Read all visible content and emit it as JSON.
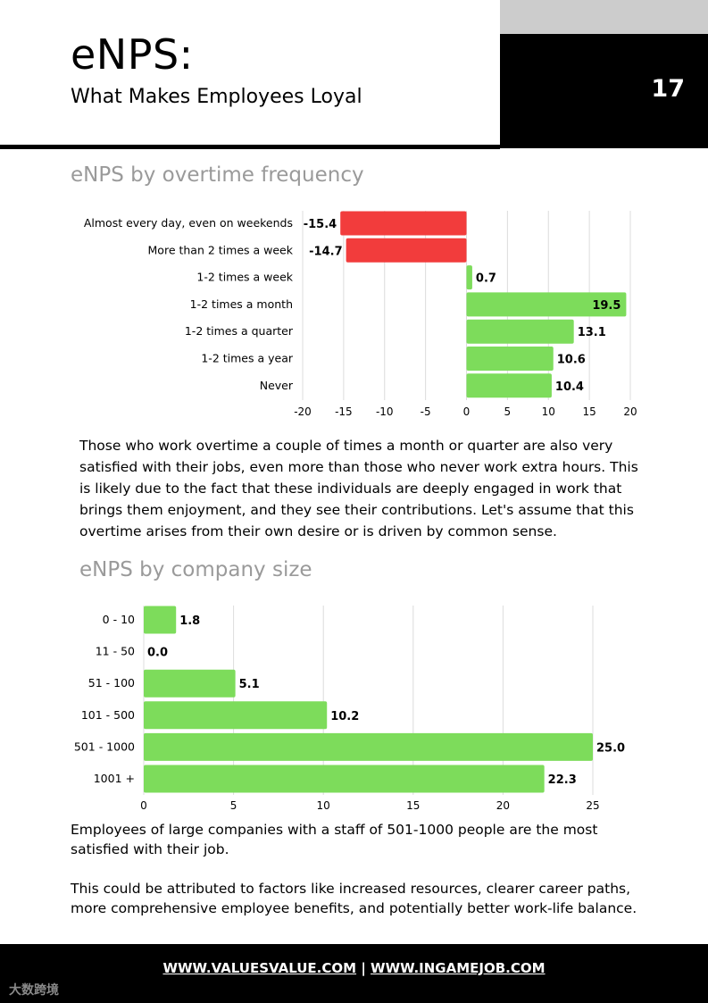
{
  "header": {
    "title": "eNPS:",
    "subtitle": "What Makes Employees Loyal",
    "page_number": "17"
  },
  "section1": {
    "title": "eNPS by overtime frequency",
    "paragraph": "Those who work overtime a couple of times a month or quarter are also very satisfied with their jobs, even more than those who never work extra hours. This is likely due to the fact that these individuals are deeply engaged in work that brings them enjoyment, and they see their contributions. Let's assume that this overtime arises from their own desire or is driven by common sense."
  },
  "section2": {
    "title": "eNPS by company size",
    "paragraph1": "Employees of large companies with a staff of 501-1000 people are the most satisfied with their job.",
    "paragraph2": "This could be attributed to factors like increased resources, clearer career paths, more comprehensive employee benefits, and potentially better work-life balance."
  },
  "footer": {
    "link1": "WWW.VALUESVALUE.COM",
    "separator": "|",
    "link2": "WWW.INGAMEJOB.COM",
    "watermark": "大数跨境"
  },
  "colors": {
    "positive": "#7ddc5b",
    "negative": "#f23c3c",
    "gray_header": "#cccccc"
  },
  "chart_data": [
    {
      "type": "bar",
      "orientation": "horizontal",
      "categories": [
        "Almost every day, even on weekends",
        "More than 2 times a week",
        "1-2 times a week",
        "1-2 times a month",
        "1-2 times a quarter",
        "1-2 times a year",
        "Never"
      ],
      "values": [
        -15.4,
        -14.7,
        0.7,
        19.5,
        13.1,
        10.6,
        10.4
      ],
      "value_labels": [
        "-15.4",
        "-14.7",
        "0.7",
        "19.5",
        "13.1",
        "10.6",
        "10.4"
      ],
      "xlim": [
        -20,
        20
      ],
      "xticks": [
        "-20",
        "-15",
        "-10",
        "-5",
        "0",
        "5",
        "10",
        "15",
        "20"
      ],
      "grid": true
    },
    {
      "type": "bar",
      "orientation": "horizontal",
      "categories": [
        "0 - 10",
        "11 - 50",
        "51 - 100",
        "101 - 500",
        "501 - 1000",
        "1001 +"
      ],
      "values": [
        1.8,
        0.0,
        5.1,
        10.2,
        25.0,
        22.3
      ],
      "value_labels": [
        "1.8",
        "0.0",
        "5.1",
        "10.2",
        "25.0",
        "22.3"
      ],
      "xlim": [
        0,
        25
      ],
      "xticks": [
        "0",
        "5",
        "10",
        "15",
        "20",
        "25"
      ],
      "grid": true
    }
  ]
}
